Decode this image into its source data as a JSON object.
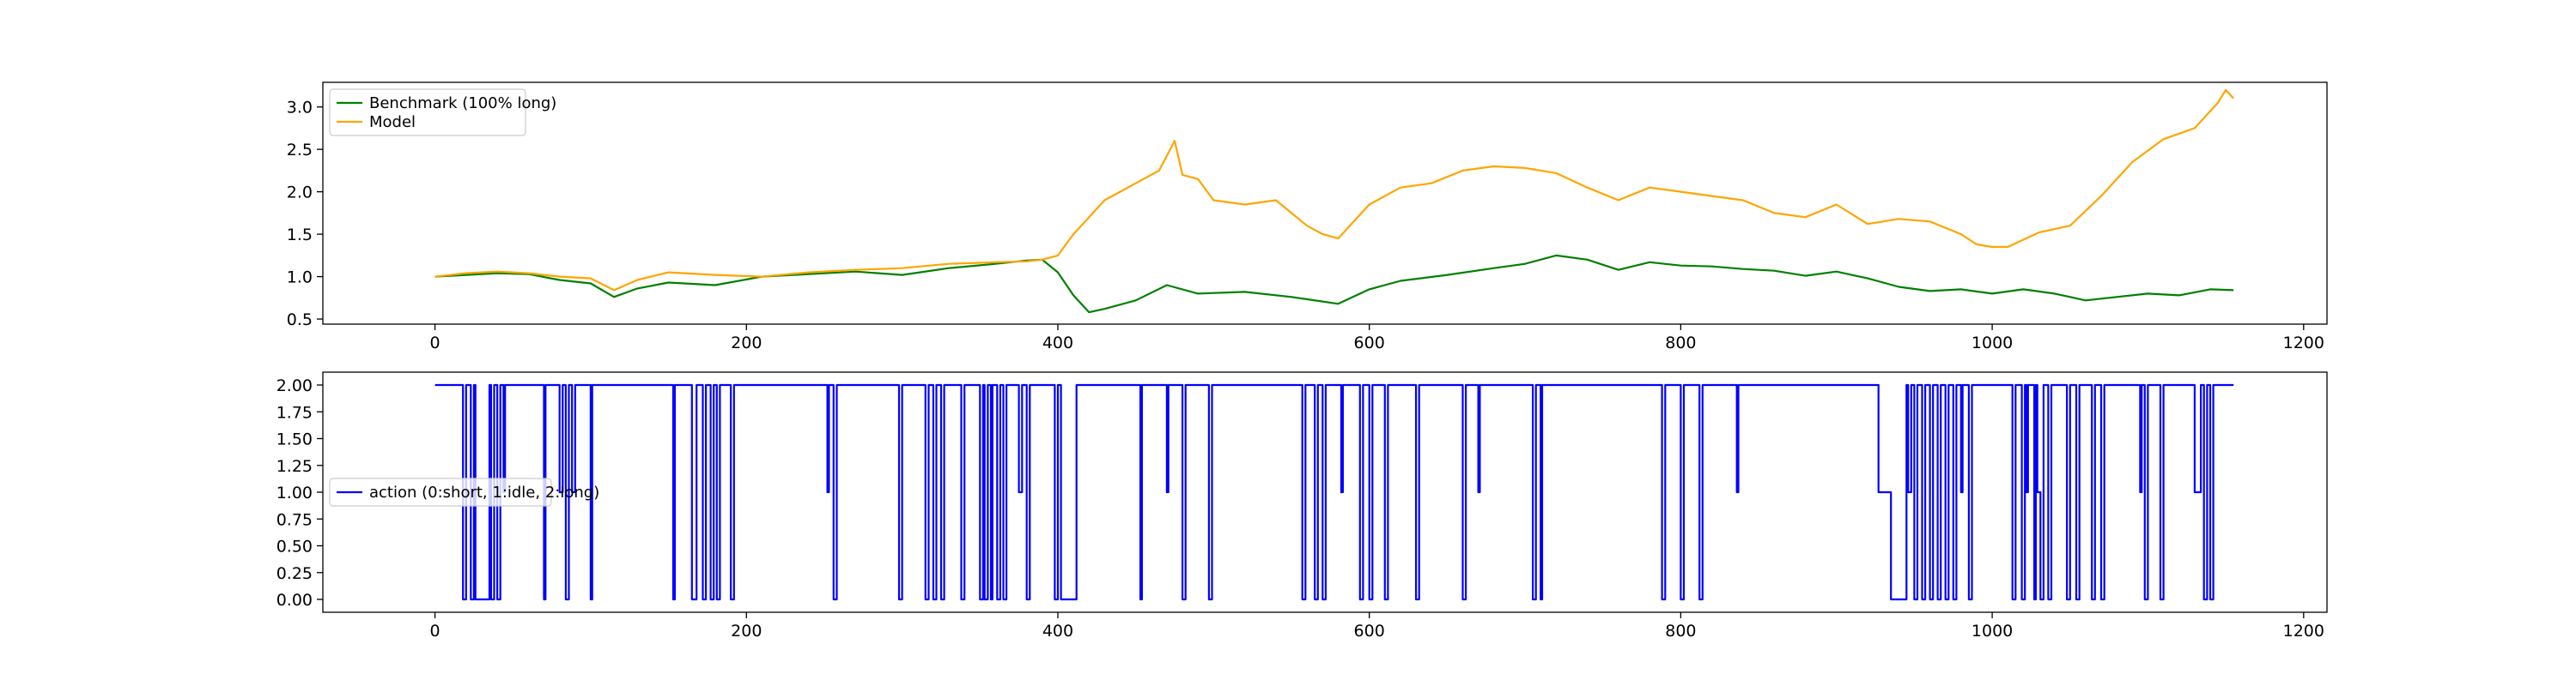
{
  "chart_data": [
    {
      "type": "line",
      "title": "",
      "xlabel": "",
      "ylabel": "",
      "xlim": [
        -72,
        1215
      ],
      "ylim": [
        0.44,
        3.29
      ],
      "xticks": [
        0,
        200,
        400,
        600,
        800,
        1000,
        1200
      ],
      "yticks": [
        0.5,
        1.0,
        1.5,
        2.0,
        2.5,
        3.0
      ],
      "ytick_labels": [
        "0.5",
        "1.0",
        "1.5",
        "2.0",
        "2.5",
        "3.0"
      ],
      "grid": false,
      "legend": "upper-left",
      "series": [
        {
          "name": "Benchmark (100% long)",
          "color": "#008000",
          "x": [
            0,
            20,
            40,
            60,
            80,
            100,
            115,
            130,
            150,
            180,
            210,
            240,
            270,
            300,
            330,
            360,
            380,
            390,
            400,
            410,
            420,
            430,
            450,
            470,
            490,
            520,
            550,
            580,
            600,
            620,
            650,
            680,
            700,
            720,
            740,
            760,
            780,
            800,
            820,
            840,
            860,
            880,
            900,
            920,
            940,
            960,
            980,
            1000,
            1020,
            1040,
            1060,
            1080,
            1100,
            1120,
            1140,
            1155
          ],
          "y": [
            1.0,
            1.02,
            1.04,
            1.03,
            0.96,
            0.92,
            0.76,
            0.86,
            0.93,
            0.9,
            1.0,
            1.03,
            1.06,
            1.02,
            1.1,
            1.15,
            1.19,
            1.2,
            1.05,
            0.78,
            0.58,
            0.62,
            0.72,
            0.9,
            0.8,
            0.82,
            0.76,
            0.68,
            0.85,
            0.95,
            1.02,
            1.1,
            1.15,
            1.25,
            1.2,
            1.08,
            1.17,
            1.13,
            1.12,
            1.09,
            1.07,
            1.01,
            1.06,
            0.98,
            0.88,
            0.83,
            0.85,
            0.8,
            0.85,
            0.8,
            0.72,
            0.76,
            0.8,
            0.78,
            0.85,
            0.84
          ]
        },
        {
          "name": "Model",
          "color": "#ffa500",
          "x": [
            0,
            20,
            40,
            60,
            80,
            100,
            115,
            130,
            150,
            180,
            210,
            240,
            270,
            300,
            330,
            360,
            380,
            390,
            400,
            410,
            420,
            430,
            440,
            455,
            465,
            475,
            480,
            490,
            500,
            520,
            540,
            560,
            570,
            580,
            600,
            620,
            640,
            660,
            680,
            700,
            720,
            740,
            760,
            780,
            800,
            820,
            840,
            860,
            880,
            900,
            920,
            940,
            960,
            980,
            990,
            1000,
            1010,
            1030,
            1050,
            1070,
            1090,
            1110,
            1130,
            1145,
            1150,
            1155
          ],
          "y": [
            1.0,
            1.04,
            1.06,
            1.04,
            1.0,
            0.98,
            0.84,
            0.96,
            1.05,
            1.02,
            1.0,
            1.05,
            1.08,
            1.1,
            1.15,
            1.17,
            1.18,
            1.2,
            1.25,
            1.5,
            1.7,
            1.9,
            2.0,
            2.15,
            2.25,
            2.6,
            2.2,
            2.15,
            1.9,
            1.85,
            1.9,
            1.6,
            1.5,
            1.45,
            1.85,
            2.05,
            2.1,
            2.25,
            2.3,
            2.28,
            2.22,
            2.05,
            1.9,
            2.05,
            2.0,
            1.95,
            1.9,
            1.75,
            1.7,
            1.85,
            1.62,
            1.68,
            1.65,
            1.5,
            1.38,
            1.35,
            1.35,
            1.52,
            1.6,
            1.95,
            2.35,
            2.62,
            2.75,
            3.05,
            3.2,
            3.1
          ]
        }
      ]
    },
    {
      "type": "line",
      "title": "",
      "xlabel": "",
      "ylabel": "",
      "xlim": [
        -72,
        1215
      ],
      "ylim": [
        -0.12,
        2.12
      ],
      "xticks": [
        0,
        200,
        400,
        600,
        800,
        1000,
        1200
      ],
      "yticks": [
        0.0,
        0.25,
        0.5,
        0.75,
        1.0,
        1.25,
        1.5,
        1.75,
        2.0
      ],
      "ytick_labels": [
        "0.00",
        "0.25",
        "0.50",
        "0.75",
        "1.00",
        "1.25",
        "1.50",
        "1.75",
        "2.00"
      ],
      "grid": false,
      "legend": "center-left",
      "series": [
        {
          "name": "action (0:short, 1:idle, 2:long)",
          "color": "#0000ff",
          "segments": [
            [
              0,
              2
            ],
            [
              18,
              0
            ],
            [
              20,
              2
            ],
            [
              23,
              0
            ],
            [
              25,
              2
            ],
            [
              26,
              0
            ],
            [
              35,
              2
            ],
            [
              36,
              0
            ],
            [
              38,
              2
            ],
            [
              40,
              0
            ],
            [
              42,
              2
            ],
            [
              44,
              1
            ],
            [
              45,
              2
            ],
            [
              70,
              0
            ],
            [
              71,
              2
            ],
            [
              80,
              1
            ],
            [
              82,
              2
            ],
            [
              84,
              0
            ],
            [
              86,
              2
            ],
            [
              88,
              1
            ],
            [
              90,
              2
            ],
            [
              100,
              0
            ],
            [
              101,
              2
            ],
            [
              153,
              0
            ],
            [
              154,
              2
            ],
            [
              165,
              0
            ],
            [
              168,
              2
            ],
            [
              172,
              0
            ],
            [
              174,
              2
            ],
            [
              177,
              0
            ],
            [
              179,
              2
            ],
            [
              181,
              0
            ],
            [
              183,
              2
            ],
            [
              190,
              0
            ],
            [
              192,
              2
            ],
            [
              252,
              1
            ],
            [
              253,
              2
            ],
            [
              256,
              0
            ],
            [
              258,
              2
            ],
            [
              298,
              0
            ],
            [
              300,
              2
            ],
            [
              315,
              0
            ],
            [
              317,
              2
            ],
            [
              320,
              0
            ],
            [
              322,
              2
            ],
            [
              325,
              0
            ],
            [
              327,
              2
            ],
            [
              338,
              0
            ],
            [
              340,
              2
            ],
            [
              350,
              0
            ],
            [
              352,
              2
            ],
            [
              353,
              0
            ],
            [
              355,
              2
            ],
            [
              357,
              0
            ],
            [
              358,
              2
            ],
            [
              361,
              0
            ],
            [
              363,
              2
            ],
            [
              365,
              0
            ],
            [
              367,
              2
            ],
            [
              375,
              1
            ],
            [
              377,
              2
            ],
            [
              380,
              0
            ],
            [
              382,
              2
            ],
            [
              398,
              0
            ],
            [
              400,
              2
            ],
            [
              402,
              0
            ],
            [
              412,
              2
            ],
            [
              453,
              0
            ],
            [
              454,
              2
            ],
            [
              470,
              1
            ],
            [
              471,
              2
            ],
            [
              480,
              0
            ],
            [
              482,
              2
            ],
            [
              497,
              0
            ],
            [
              499,
              2
            ],
            [
              557,
              0
            ],
            [
              559,
              2
            ],
            [
              565,
              0
            ],
            [
              567,
              2
            ],
            [
              570,
              0
            ],
            [
              572,
              2
            ],
            [
              582,
              1
            ],
            [
              583,
              2
            ],
            [
              594,
              0
            ],
            [
              596,
              2
            ],
            [
              600,
              0
            ],
            [
              602,
              2
            ],
            [
              610,
              0
            ],
            [
              612,
              2
            ],
            [
              630,
              0
            ],
            [
              632,
              2
            ],
            [
              660,
              0
            ],
            [
              662,
              2
            ],
            [
              670,
              1
            ],
            [
              671,
              2
            ],
            [
              705,
              0
            ],
            [
              707,
              2
            ],
            [
              710,
              0
            ],
            [
              711,
              2
            ],
            [
              788,
              0
            ],
            [
              790,
              2
            ],
            [
              800,
              0
            ],
            [
              802,
              2
            ],
            [
              812,
              0
            ],
            [
              814,
              2
            ],
            [
              836,
              1
            ],
            [
              837,
              2
            ],
            [
              927,
              1
            ],
            [
              935,
              0
            ],
            [
              945,
              2
            ],
            [
              946,
              1
            ],
            [
              948,
              2
            ],
            [
              950,
              0
            ],
            [
              952,
              2
            ],
            [
              955,
              0
            ],
            [
              957,
              2
            ],
            [
              960,
              0
            ],
            [
              962,
              2
            ],
            [
              965,
              0
            ],
            [
              967,
              2
            ],
            [
              970,
              0
            ],
            [
              972,
              2
            ],
            [
              975,
              0
            ],
            [
              977,
              2
            ],
            [
              980,
              1
            ],
            [
              981,
              2
            ],
            [
              985,
              0
            ],
            [
              987,
              2
            ],
            [
              1013,
              0
            ],
            [
              1015,
              2
            ],
            [
              1019,
              0
            ],
            [
              1021,
              2
            ],
            [
              1022,
              1
            ],
            [
              1023,
              2
            ],
            [
              1027,
              0
            ],
            [
              1028,
              2
            ],
            [
              1029,
              1
            ],
            [
              1031,
              0
            ],
            [
              1033,
              2
            ],
            [
              1036,
              0
            ],
            [
              1038,
              2
            ],
            [
              1048,
              0
            ],
            [
              1050,
              2
            ],
            [
              1054,
              0
            ],
            [
              1056,
              2
            ],
            [
              1064,
              0
            ],
            [
              1066,
              2
            ],
            [
              1070,
              0
            ],
            [
              1072,
              2
            ],
            [
              1095,
              1
            ],
            [
              1096,
              2
            ],
            [
              1098,
              0
            ],
            [
              1100,
              2
            ],
            [
              1108,
              0
            ],
            [
              1110,
              2
            ],
            [
              1130,
              1
            ],
            [
              1134,
              2
            ],
            [
              1136,
              0
            ],
            [
              1138,
              2
            ],
            [
              1140,
              0
            ],
            [
              1142,
              2
            ],
            [
              1155,
              2
            ]
          ]
        }
      ]
    }
  ]
}
